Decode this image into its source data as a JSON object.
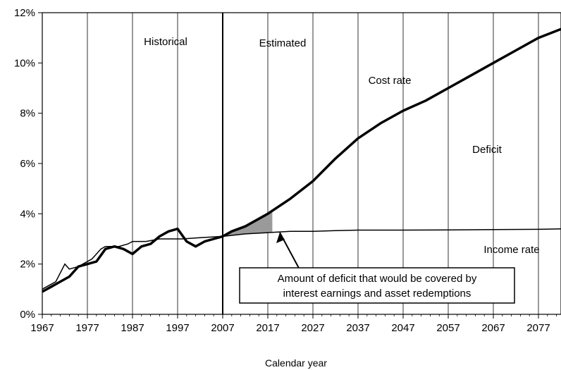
{
  "chart_data": {
    "type": "line",
    "title": "",
    "xlabel": "Calendar year",
    "ylabel": "",
    "xlim": [
      1967,
      2082
    ],
    "ylim": [
      0,
      12
    ],
    "x_ticks": [
      1967,
      1977,
      1987,
      1997,
      2007,
      2017,
      2027,
      2037,
      2047,
      2057,
      2067,
      2077
    ],
    "y_ticks": [
      0,
      2,
      4,
      6,
      8,
      10,
      12
    ],
    "y_tick_labels": [
      "0%",
      "2%",
      "4%",
      "6%",
      "8%",
      "10%",
      "12%"
    ],
    "grid": "vertical",
    "divider_year": 2007,
    "region_labels": {
      "historical": "Historical",
      "estimated": "Estimated"
    },
    "series": [
      {
        "name": "Cost rate",
        "x": [
          1967,
          1969,
          1971,
          1973,
          1975,
          1977,
          1979,
          1981,
          1983,
          1985,
          1987,
          1989,
          1991,
          1993,
          1995,
          1997,
          1999,
          2001,
          2003,
          2005,
          2007,
          2009,
          2012,
          2017,
          2022,
          2027,
          2032,
          2037,
          2042,
          2047,
          2052,
          2057,
          2062,
          2067,
          2072,
          2077,
          2082
        ],
        "y": [
          0.9,
          1.1,
          1.3,
          1.5,
          1.9,
          2.0,
          2.1,
          2.6,
          2.7,
          2.6,
          2.4,
          2.7,
          2.8,
          3.1,
          3.3,
          3.4,
          2.9,
          2.7,
          2.9,
          3.0,
          3.1,
          3.3,
          3.5,
          4.0,
          4.6,
          5.3,
          6.2,
          7.0,
          7.6,
          8.1,
          8.5,
          9.0,
          9.5,
          10.0,
          10.5,
          11.0,
          11.35
        ]
      },
      {
        "name": "Income rate",
        "x": [
          1967,
          1969,
          1970,
          1972,
          1973,
          1975,
          1978,
          1980,
          1981,
          1984,
          1986,
          1987,
          1990,
          1993,
          1994,
          1998,
          2002,
          2007,
          2012,
          2017,
          2022,
          2027,
          2032,
          2037,
          2047,
          2057,
          2067,
          2077,
          2082
        ],
        "y": [
          1.0,
          1.2,
          1.3,
          2.0,
          1.8,
          1.9,
          2.2,
          2.6,
          2.7,
          2.7,
          2.8,
          2.9,
          2.9,
          3.0,
          3.0,
          3.0,
          3.05,
          3.1,
          3.2,
          3.25,
          3.3,
          3.3,
          3.33,
          3.35,
          3.35,
          3.36,
          3.37,
          3.38,
          3.4
        ]
      }
    ],
    "shaded_region": {
      "x_start": 2007,
      "x_end": 2018,
      "between": [
        "Income rate",
        "Cost rate"
      ],
      "color": "#9a9a9a"
    },
    "annotations": {
      "cost_rate": "Cost rate",
      "income_rate": "Income rate",
      "deficit": "Deficit",
      "callout_line1": "Amount of deficit that would be covered by",
      "callout_line2": "interest earnings and asset redemptions"
    }
  }
}
